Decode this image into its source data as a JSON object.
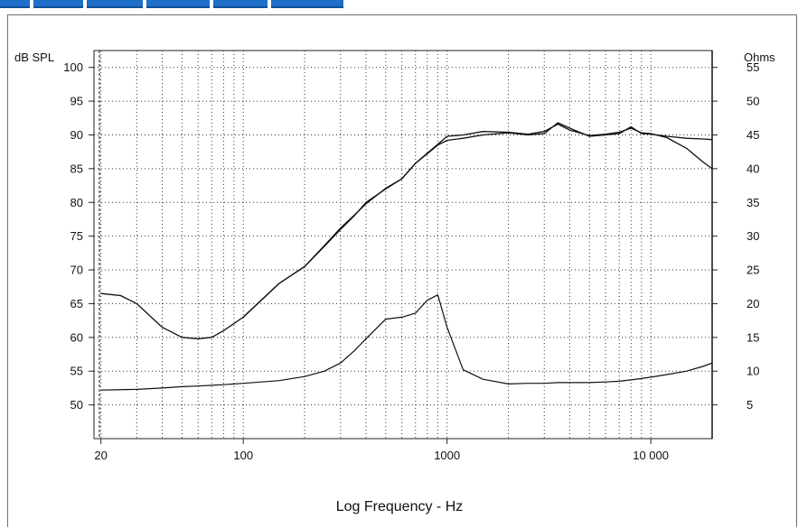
{
  "chart_data": {
    "type": "line",
    "xscale": "log",
    "xlim": [
      18.5,
      20000
    ],
    "x_ticks": [
      20,
      100,
      1000,
      10000
    ],
    "x_tick_labels": [
      "20",
      "100",
      "1000",
      "10 000"
    ],
    "xlabel": "Log Frequency - Hz",
    "y_left": {
      "label": "dB SPL",
      "ticks": [
        50,
        55,
        60,
        65,
        70,
        75,
        80,
        85,
        90,
        95,
        100
      ],
      "ylim": [
        45,
        102.5
      ]
    },
    "y_right": {
      "label": "Ohms",
      "ticks": [
        5,
        10,
        15,
        20,
        25,
        30,
        35,
        40,
        45,
        50,
        55
      ],
      "ylim": [
        0,
        57.5
      ]
    },
    "grid": true,
    "series": [
      {
        "axis": "left",
        "x": [
          20,
          30,
          40,
          50,
          60,
          70,
          80,
          100,
          150,
          200,
          250,
          300,
          350,
          400,
          500,
          600,
          700,
          800,
          900,
          1000,
          1200,
          1500,
          2000,
          2500,
          3000,
          3500,
          4000,
          5000,
          6000,
          7000,
          8000,
          9000,
          10000,
          12000,
          15000,
          18000,
          20000
        ],
        "y": [
          52.2,
          52.3,
          52.5,
          52.7,
          52.8,
          52.9,
          53.0,
          53.2,
          53.6,
          54.2,
          55.0,
          56.2,
          58.0,
          59.8,
          62.7,
          63.0,
          63.6,
          65.5,
          66.3,
          61.5,
          55.2,
          53.8,
          53.1,
          53.2,
          53.2,
          53.3,
          53.3,
          53.3,
          53.4,
          53.5,
          53.7,
          53.9,
          54.1,
          54.5,
          55.0,
          55.7,
          56.2
        ]
      },
      {
        "axis": "right",
        "x": [
          20,
          25,
          30,
          40,
          50,
          60,
          70,
          80,
          100,
          150,
          200,
          250,
          300,
          350,
          400,
          500,
          600,
          700,
          800,
          900,
          1000,
          1200,
          1500,
          2000,
          2500,
          3000,
          3500,
          4000,
          5000,
          6000,
          7000,
          8000,
          9000,
          10000,
          12000,
          15000,
          18000,
          20000
        ],
        "y": [
          21.5,
          21.2,
          20.0,
          16.5,
          15.0,
          14.8,
          15.0,
          16.0,
          18.0,
          23.0,
          25.5,
          28.5,
          31.0,
          33.0,
          35.0,
          37.0,
          38.5,
          40.8,
          42.2,
          43.5,
          44.2,
          44.5,
          45.0,
          45.3,
          45.0,
          45.2,
          46.8,
          46.0,
          44.8,
          45.0,
          45.2,
          46.2,
          45.2,
          45.1,
          44.8,
          44.5,
          44.4,
          44.3
        ]
      },
      {
        "axis": "right",
        "x": [
          100,
          150,
          200,
          250,
          300,
          350,
          400,
          500,
          600,
          700,
          800,
          900,
          1000,
          1200,
          1500,
          2000,
          2500,
          3000,
          3500,
          4000,
          5000,
          6000,
          7000,
          8000,
          9000,
          10000,
          12000,
          15000,
          18000,
          20000
        ],
        "y": [
          18.0,
          23.0,
          25.5,
          28.6,
          31.2,
          33.1,
          34.8,
          37.1,
          38.5,
          40.8,
          42.3,
          43.6,
          44.8,
          45.0,
          45.5,
          45.4,
          45.1,
          45.5,
          46.6,
          45.7,
          44.9,
          45.1,
          45.4,
          46.0,
          45.3,
          45.2,
          44.6,
          43.0,
          41.0,
          40.0
        ]
      }
    ]
  },
  "tabs": [
    "",
    "",
    "",
    "",
    "",
    ""
  ]
}
